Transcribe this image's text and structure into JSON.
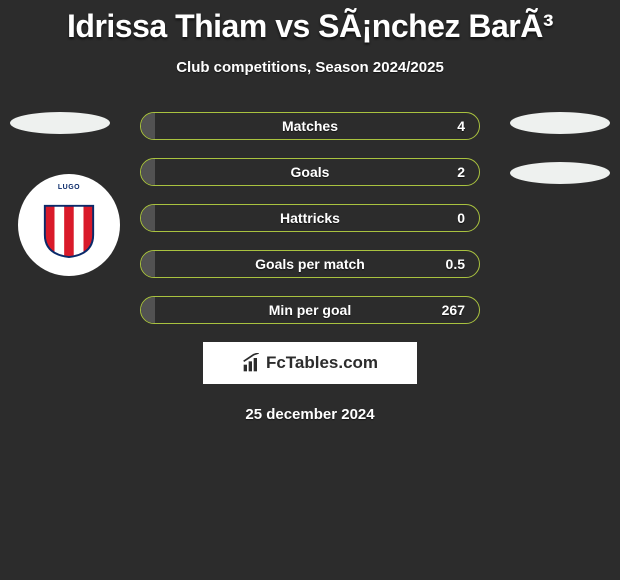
{
  "title": "Idrissa Thiam vs SÃ¡nchez BarÃ³",
  "subtitle": "Club competitions, Season 2024/2025",
  "date": "25 december 2024",
  "brand": "FcTables.com",
  "colors": {
    "background": "#2c2c2c",
    "bar_border": "#a9c23f",
    "bar_fill_left": "#525252",
    "text": "#ffffff",
    "oval": "#eef1ef",
    "badge_bg": "#ffffff",
    "badge_text": "#0a2a6a"
  },
  "club_badge": {
    "top_text": "LUGO",
    "stripes": [
      "#d91a2a",
      "#ffffff",
      "#d91a2a",
      "#ffffff",
      "#d91a2a"
    ]
  },
  "stats": {
    "rows": [
      {
        "label": "Matches",
        "right_value": "4",
        "left_fill_pct": 4
      },
      {
        "label": "Goals",
        "right_value": "2",
        "left_fill_pct": 4
      },
      {
        "label": "Hattricks",
        "right_value": "0",
        "left_fill_pct": 4
      },
      {
        "label": "Goals per match",
        "right_value": "0.5",
        "left_fill_pct": 4
      },
      {
        "label": "Min per goal",
        "right_value": "267",
        "left_fill_pct": 4
      }
    ]
  }
}
